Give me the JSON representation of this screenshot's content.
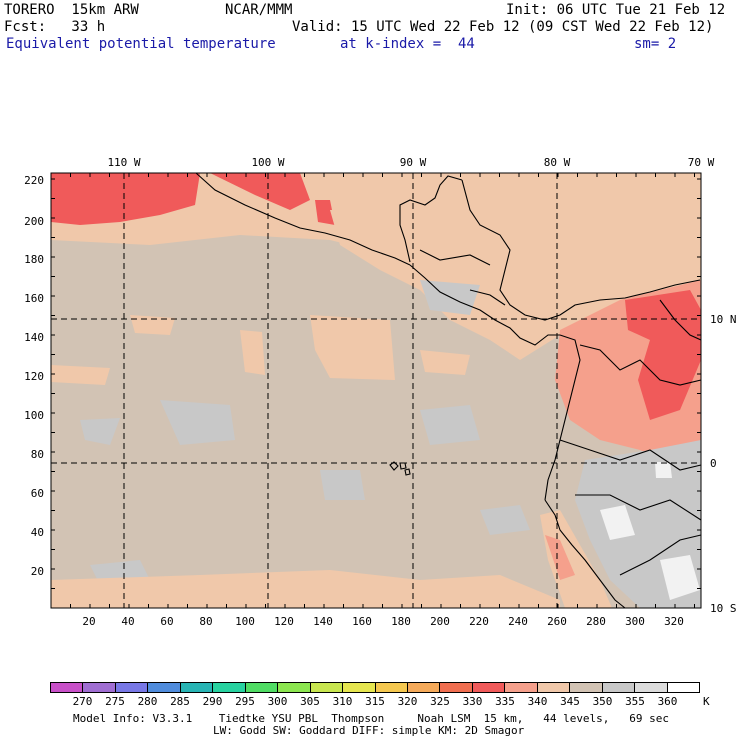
{
  "header": {
    "model": "TORERO  15km ARW",
    "center": "NCAR/MMM",
    "init": "Init: 06 UTC Tue 21 Feb 12",
    "fcst": "Fcst:   33 h",
    "valid": "Valid: 15 UTC Wed 22 Feb 12 (09 CST Wed 22 Feb 12)",
    "field": "Equivalent potential temperature",
    "level": "at k-index =  44",
    "smooth": "sm= 2"
  },
  "map": {
    "top_lon_labels": [
      "110 W",
      "100 W",
      "90 W",
      "80 W",
      "70 W"
    ],
    "right_lat_labels": [
      "10 N",
      "0",
      "10 S"
    ],
    "left_y_ticks": [
      "220",
      "200",
      "180",
      "160",
      "140",
      "120",
      "100",
      "80",
      "60",
      "40",
      "20"
    ],
    "bottom_x_ticks": [
      "20",
      "40",
      "60",
      "80",
      "100",
      "120",
      "140",
      "160",
      "180",
      "200",
      "220",
      "240",
      "260",
      "280",
      "300",
      "320"
    ],
    "shading": "Equivalent potential temperature (K): mostly 340-350 K over the Pacific; 325-340 K over Central America, the northern strip and northwestern South America; 350-360 K over the Andes."
  },
  "colorbar": {
    "labels": [
      "270",
      "275",
      "280",
      "285",
      "290",
      "295",
      "300",
      "305",
      "310",
      "315",
      "320",
      "325",
      "330",
      "335",
      "340",
      "345",
      "350",
      "355",
      "360"
    ],
    "unit": "K",
    "colors": [
      "#c850c8",
      "#a06ed2",
      "#7878e6",
      "#508cdc",
      "#28b4b4",
      "#28d2a0",
      "#50dc64",
      "#8ce650",
      "#c8e650",
      "#e6e650",
      "#f5c850",
      "#f5aa5a",
      "#f06e50",
      "#f05a5a",
      "#f5a08c",
      "#f0c8aa",
      "#d2c3b4",
      "#c8c8c8",
      "#dcdcdc",
      "#ffffff"
    ]
  },
  "footer": {
    "line1": "Model Info: V3.3.1    Tiedtke YSU PBL  Thompson     Noah LSM  15 km,   44 levels,   69 sec",
    "line2": "LW: Godd SW: Goddard DIFF: simple KM: 2D Smagor"
  }
}
